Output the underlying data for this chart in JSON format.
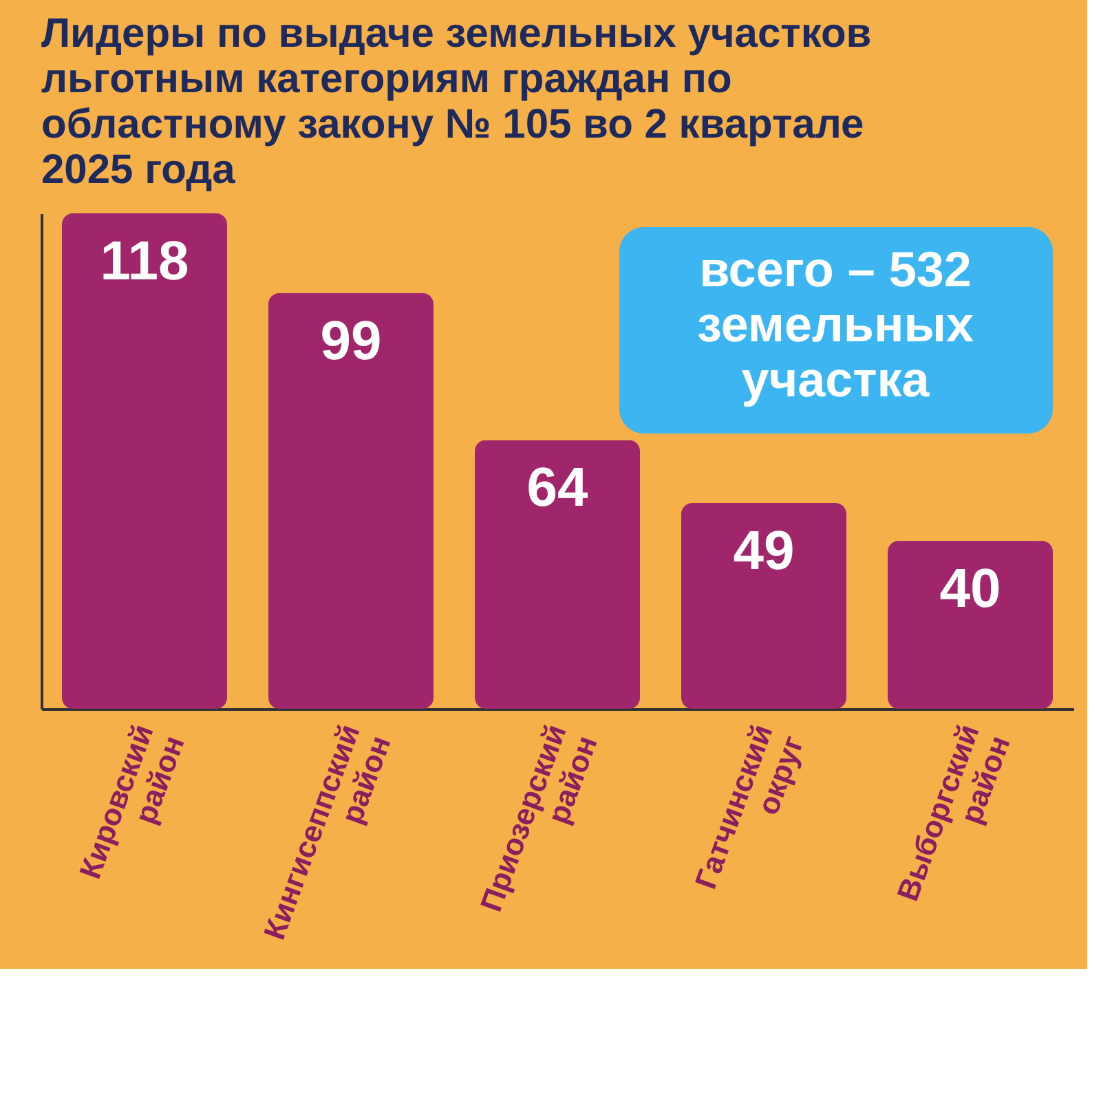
{
  "chart_data": {
    "type": "bar",
    "title": "Лидеры по выдаче земельных участков льготным категориям граждан по областному закону № 105 во 2 квартале 2025 года",
    "categories": [
      "Кировский район",
      "Кингисеппский район",
      "Приозерский район",
      "Гатчинский округ",
      "Выборгский район"
    ],
    "values": [
      118,
      99,
      64,
      49,
      40
    ],
    "color": "#a0266b",
    "data_labels": true,
    "tick_labels": "x",
    "grid": false,
    "annotations": [
      "всего – 532 земельных участка"
    ]
  }
}
